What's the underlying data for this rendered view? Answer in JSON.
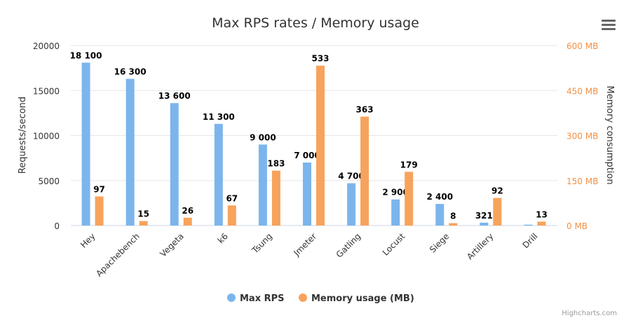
{
  "chart_data": {
    "type": "bar",
    "title": "Max RPS rates / Memory usage",
    "categories": [
      "Hey",
      "Apachebench",
      "Vegeta",
      "k6",
      "Tsung",
      "Jmeter",
      "Gatling",
      "Locust",
      "Siege",
      "Artillery",
      "Drill"
    ],
    "series": [
      {
        "name": "Max RPS",
        "axis": "left",
        "color": "#7cb5ec",
        "values": [
          18100,
          16300,
          13600,
          11300,
          9000,
          7000,
          4700,
          2900,
          2400,
          321,
          100
        ],
        "labels": [
          "18 100",
          "16 300",
          "13 600",
          "11 300",
          "9 000",
          "7 000",
          "4 700",
          "2 900",
          "2 400",
          "321",
          ""
        ]
      },
      {
        "name": "Memory usage (MB)",
        "axis": "right",
        "color": "#f7a35c",
        "values": [
          97,
          15,
          26,
          67,
          183,
          533,
          363,
          179,
          8,
          92,
          13
        ],
        "labels": [
          "97",
          "15",
          "26",
          "67",
          "183",
          "533",
          "363",
          "179",
          "8",
          "92",
          "13"
        ]
      }
    ],
    "y_left": {
      "label": "Requests/second",
      "range": [
        0,
        20000
      ],
      "ticks": [
        "0",
        "5000",
        "10000",
        "15000",
        "20000"
      ]
    },
    "y_right": {
      "label": "Memory consumption",
      "range": [
        0,
        600
      ],
      "ticks": [
        "0 MB",
        "150 MB",
        "300 MB",
        "450 MB",
        "600 MB"
      ],
      "color": "#f28f43"
    },
    "grid": true,
    "legend": "bottom-center"
  },
  "credits": "Highcharts.com",
  "menu_icon": "hamburger-menu-icon"
}
